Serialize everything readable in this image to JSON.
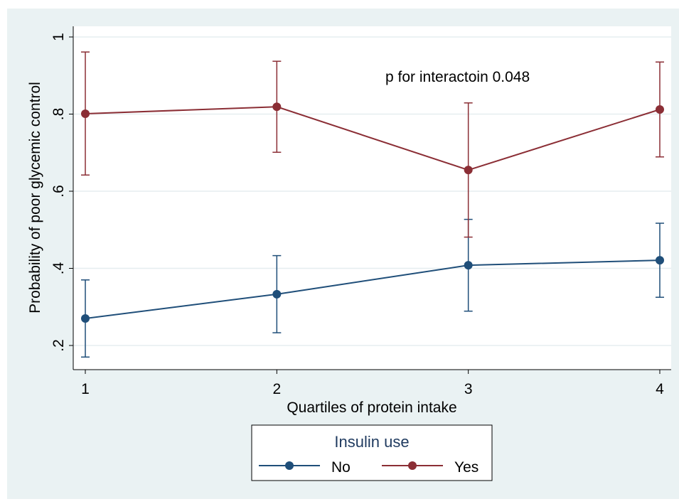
{
  "chart_data": {
    "type": "line",
    "annotation": "p for interactoin 0.048",
    "xlabel": "Quartiles of protein intake",
    "ylabel": "Probability of poor glycemic control",
    "x": [
      1,
      2,
      3,
      4
    ],
    "x_ticks": [
      "1",
      "2",
      "3",
      "4"
    ],
    "xlim": [
      1,
      4
    ],
    "y_ticks": [
      {
        "value": 0.2,
        "label": ".2"
      },
      {
        "value": 0.4,
        "label": ".4"
      },
      {
        "value": 0.6,
        "label": ".6"
      },
      {
        "value": 0.8,
        "label": ".8"
      },
      {
        "value": 1.0,
        "label": "1"
      }
    ],
    "ylim": [
      0.2,
      1.0
    ],
    "grid": true,
    "legend": {
      "title": "Insulin use",
      "position": "bottom-center"
    },
    "series": [
      {
        "name": "No",
        "color": "#1f4e79",
        "values": [
          0.27,
          0.333,
          0.408,
          0.421
        ],
        "lower": [
          0.17,
          0.233,
          0.289,
          0.325
        ],
        "upper": [
          0.37,
          0.433,
          0.527,
          0.517
        ]
      },
      {
        "name": "Yes",
        "color": "#8b2e35",
        "values": [
          0.801,
          0.819,
          0.655,
          0.812
        ],
        "lower": [
          0.642,
          0.701,
          0.481,
          0.689
        ],
        "upper": [
          0.961,
          0.937,
          0.829,
          0.935
        ]
      }
    ]
  }
}
